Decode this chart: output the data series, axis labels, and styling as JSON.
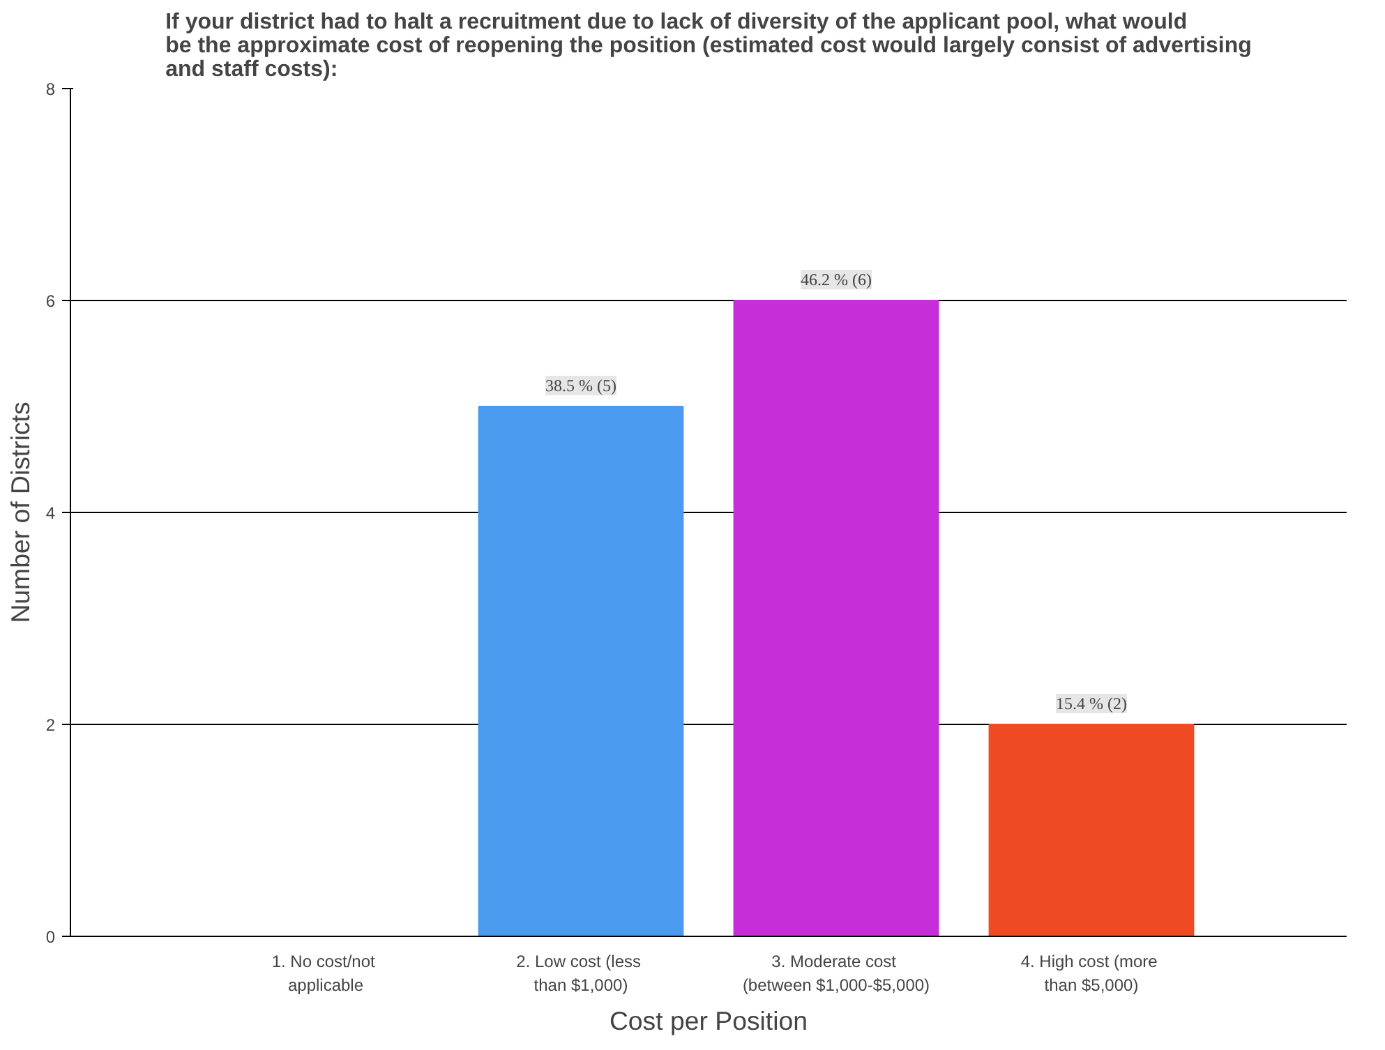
{
  "chart_data": {
    "type": "bar",
    "title": "If your district had to halt a recruitment due to lack of diversity of the applicant pool, what would be the approximate cost of reopening the position (estimated cost would largely consist of advertising and staff costs):",
    "xlabel": "Cost per Position",
    "ylabel": "Number of Districts",
    "categories": [
      "1.  No cost/not\napplicable",
      "2.  Low cost (less\nthan $1,000)",
      "3.  Moderate cost\n(between $1,000-$5,000)",
      "4.  High cost (more\nthan $5,000)"
    ],
    "values": [
      0,
      5,
      6,
      2
    ],
    "colors": [
      "#4a9af0",
      "#4a9af0",
      "#c62fd8",
      "#f04a24"
    ],
    "value_labels": [
      null,
      "38.5 % (5)",
      "46.2 % (6)",
      "15.4 % (2)"
    ],
    "ylim": [
      0,
      8
    ],
    "yticks": [
      0,
      2,
      4,
      6,
      8
    ],
    "grid": "y"
  }
}
